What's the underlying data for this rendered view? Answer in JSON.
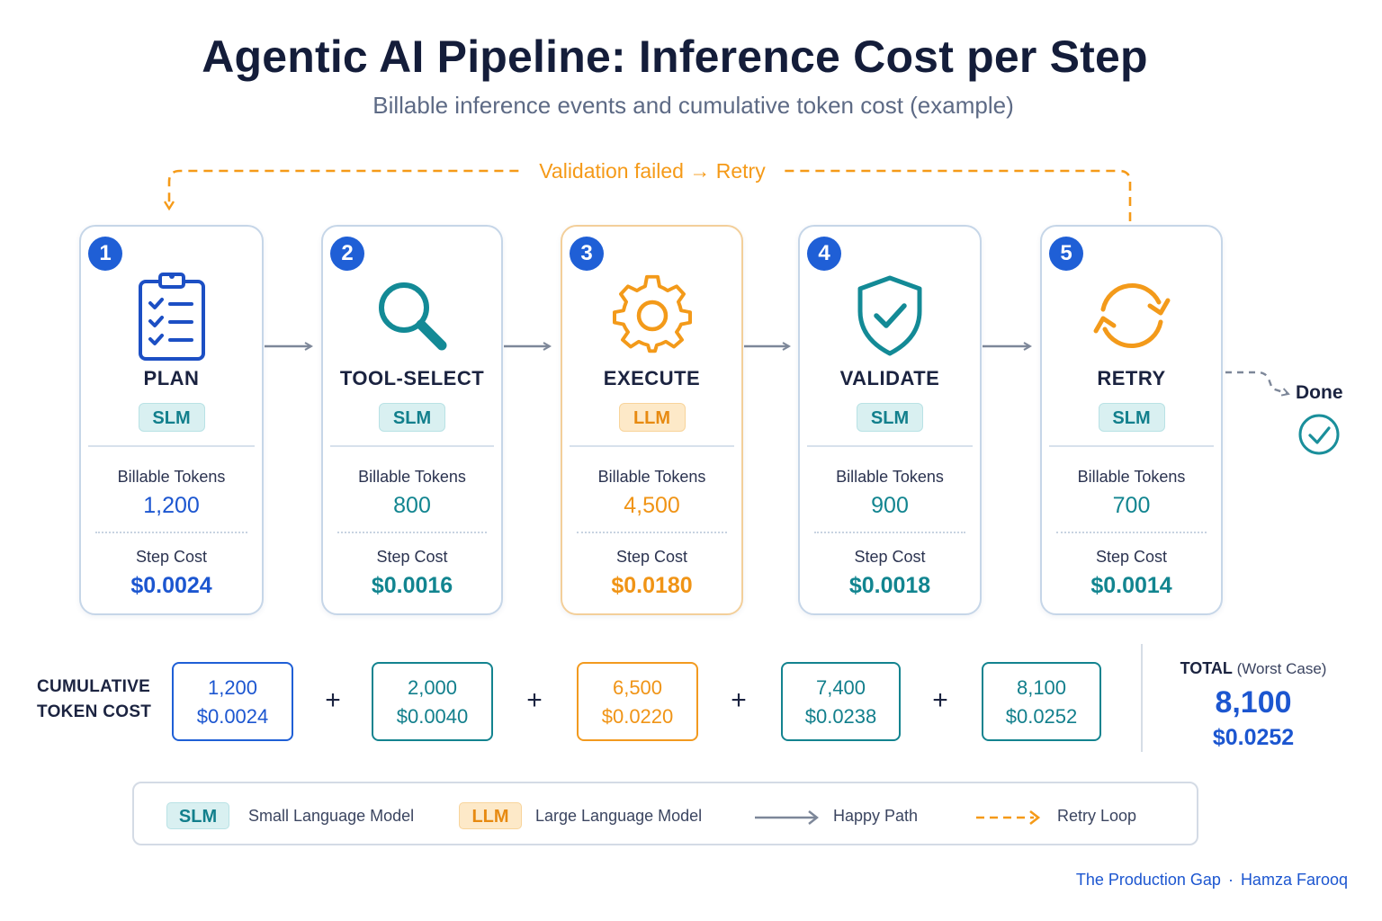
{
  "header": {
    "title": "Agentic AI Pipeline: Inference Cost per Step",
    "subtitle": "Billable inference events and cumulative token cost (example)"
  },
  "retry_loop_label": "Validation failed → Retry",
  "steps": [
    {
      "number": "1",
      "name": "PLAN",
      "model": "SLM",
      "tokens_label": "Billable Tokens",
      "tokens": "1,200",
      "cost_label": "Step Cost",
      "cost": "$0.0024",
      "icon": "clipboard-checklist-icon"
    },
    {
      "number": "2",
      "name": "TOOL-SELECT",
      "model": "SLM",
      "tokens_label": "Billable Tokens",
      "tokens": "800",
      "cost_label": "Step Cost",
      "cost": "$0.0016",
      "icon": "magnifier-icon"
    },
    {
      "number": "3",
      "name": "EXECUTE",
      "model": "LLM",
      "tokens_label": "Billable Tokens",
      "tokens": "4,500",
      "cost_label": "Step Cost",
      "cost": "$0.0180",
      "icon": "gear-icon"
    },
    {
      "number": "4",
      "name": "VALIDATE",
      "model": "SLM",
      "tokens_label": "Billable Tokens",
      "tokens": "900",
      "cost_label": "Step Cost",
      "cost": "$0.0018",
      "icon": "shield-check-icon"
    },
    {
      "number": "5",
      "name": "RETRY",
      "model": "SLM",
      "tokens_label": "Billable Tokens",
      "tokens": "700",
      "cost_label": "Step Cost",
      "cost": "$0.0014",
      "icon": "refresh-arrows-icon"
    }
  ],
  "done_label": "Done",
  "cumulative": {
    "label_line1": "CUMULATIVE",
    "label_line2": "TOKEN COST",
    "boxes": [
      {
        "tokens": "1,200",
        "cost": "$0.0024"
      },
      {
        "tokens": "2,000",
        "cost": "$0.0040"
      },
      {
        "tokens": "6,500",
        "cost": "$0.0220"
      },
      {
        "tokens": "7,400",
        "cost": "$0.0238"
      },
      {
        "tokens": "8,100",
        "cost": "$0.0252"
      }
    ],
    "operator": "+"
  },
  "total": {
    "label": "TOTAL",
    "qualifier": "(Worst Case)",
    "tokens": "8,100",
    "cost": "$0.0252"
  },
  "legend": {
    "slm_badge": "SLM",
    "slm_text": "Small Language Model",
    "llm_badge": "LLM",
    "llm_text": "Large Language Model",
    "happy_path": "Happy Path",
    "retry_loop": "Retry Loop"
  },
  "credit": {
    "publication": "The Production Gap",
    "separator": "·",
    "author": "Hamza Farooq"
  },
  "colors": {
    "blue": "#1c56d0",
    "teal": "#128590",
    "orange": "#f09416",
    "arrow_gray": "#7d8799"
  }
}
